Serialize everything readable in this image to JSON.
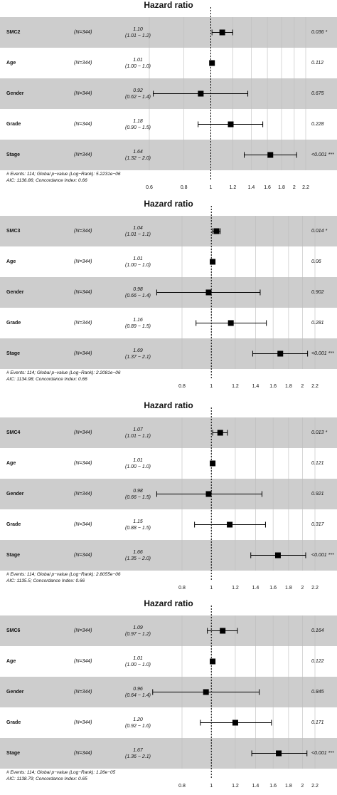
{
  "chart_data": [
    {
      "type": "forest",
      "title": "Hazard ratio",
      "xscale": "log",
      "xlim": [
        0.55,
        2.4
      ],
      "xticks": [
        "0.6",
        "0.8",
        "1",
        "1.2",
        "1.4",
        "1.6",
        "1.8",
        "2",
        "2.2"
      ],
      "rows": [
        {
          "variable": "SMC2",
          "n": "(N=344)",
          "hr": "1.10",
          "ci": "(1.01 − 1.2)",
          "pvalue": "0.036 *",
          "est": 1.1,
          "low": 1.01,
          "high": 1.2
        },
        {
          "variable": "Age",
          "n": "(N=344)",
          "hr": "1.01",
          "ci": "(1.00 − 1.0)",
          "pvalue": "0.112",
          "est": 1.01,
          "low": 1.0,
          "high": 1.02
        },
        {
          "variable": "Gender",
          "n": "(N=344)",
          "hr": "0.92",
          "ci": "(0.62 − 1.4)",
          "pvalue": "0.675",
          "est": 0.92,
          "low": 0.62,
          "high": 1.36
        },
        {
          "variable": "Grade",
          "n": "(N=344)",
          "hr": "1.18",
          "ci": "(0.90 − 1.5)",
          "pvalue": "0.228",
          "est": 1.18,
          "low": 0.9,
          "high": 1.54
        },
        {
          "variable": "Stage",
          "n": "(N=344)",
          "hr": "1.64",
          "ci": "(1.32 − 2.0)",
          "pvalue": "<0.001 ***",
          "est": 1.64,
          "low": 1.32,
          "high": 2.04
        }
      ],
      "footnote": [
        "# Events: 114; Global p−value (Log−Rank): 5.2231e−06",
        "AIC: 1136.86; Concordance Index: 0.66"
      ]
    },
    {
      "type": "forest",
      "title": "Hazard ratio",
      "xscale": "log",
      "xlim": [
        0.62,
        2.4
      ],
      "xticks": [
        "0.8",
        "1",
        "1.2",
        "1.4",
        "1.6",
        "1.8",
        "2",
        "2.2"
      ],
      "rows": [
        {
          "variable": "SMC3",
          "n": "(N=344)",
          "hr": "1.04",
          "ci": "(1.01 − 1.1)",
          "pvalue": "0.014 *",
          "est": 1.04,
          "low": 1.01,
          "high": 1.07
        },
        {
          "variable": "Age",
          "n": "(N=344)",
          "hr": "1.01",
          "ci": "(1.00 − 1.0)",
          "pvalue": "0.06",
          "est": 1.01,
          "low": 1.0,
          "high": 1.02
        },
        {
          "variable": "Gender",
          "n": "(N=344)",
          "hr": "0.98",
          "ci": "(0.66 − 1.4)",
          "pvalue": "0.902",
          "est": 0.98,
          "low": 0.66,
          "high": 1.45
        },
        {
          "variable": "Grade",
          "n": "(N=344)",
          "hr": "1.16",
          "ci": "(0.89 − 1.5)",
          "pvalue": "0.281",
          "est": 1.16,
          "low": 0.89,
          "high": 1.52
        },
        {
          "variable": "Stage",
          "n": "(N=344)",
          "hr": "1.69",
          "ci": "(1.37 − 2.1)",
          "pvalue": "<0.001 ***",
          "est": 1.69,
          "low": 1.37,
          "high": 2.08
        }
      ],
      "footnote": [
        "# Events: 114; Global p−value (Log−Rank): 2.2081e−06",
        "AIC: 1134.98; Concordance Index: 0.66"
      ]
    },
    {
      "type": "forest",
      "title": "Hazard ratio",
      "xscale": "log",
      "xlim": [
        0.62,
        2.4
      ],
      "xticks": [
        "0.8",
        "1",
        "1.2",
        "1.4",
        "1.6",
        "1.8",
        "2",
        "2.2"
      ],
      "rows": [
        {
          "variable": "SMC4",
          "n": "(N=344)",
          "hr": "1.07",
          "ci": "(1.01 − 1.1)",
          "pvalue": "0.013 *",
          "est": 1.07,
          "low": 1.01,
          "high": 1.13
        },
        {
          "variable": "Age",
          "n": "(N=344)",
          "hr": "1.01",
          "ci": "(1.00 − 1.0)",
          "pvalue": "0.121",
          "est": 1.01,
          "low": 1.0,
          "high": 1.02
        },
        {
          "variable": "Gender",
          "n": "(N=344)",
          "hr": "0.98",
          "ci": "(0.66 − 1.5)",
          "pvalue": "0.921",
          "est": 0.98,
          "low": 0.66,
          "high": 1.47
        },
        {
          "variable": "Grade",
          "n": "(N=344)",
          "hr": "1.15",
          "ci": "(0.88 − 1.5)",
          "pvalue": "0.317",
          "est": 1.15,
          "low": 0.88,
          "high": 1.51
        },
        {
          "variable": "Stage",
          "n": "(N=344)",
          "hr": "1.66",
          "ci": "(1.35 − 2.0)",
          "pvalue": "<0.001 ***",
          "est": 1.66,
          "low": 1.35,
          "high": 2.05
        }
      ],
      "footnote": [
        "# Events: 114; Global p−value (Log−Rank): 2.8055e−06",
        "AIC: 1135.5; Concordance Index: 0.66"
      ]
    },
    {
      "type": "forest",
      "title": "Hazard ratio",
      "xscale": "log",
      "xlim": [
        0.62,
        2.4
      ],
      "xticks": [
        "0.8",
        "1",
        "1.2",
        "1.4",
        "1.6",
        "1.8",
        "2",
        "2.2"
      ],
      "rows": [
        {
          "variable": "SMC6",
          "n": "(N=344)",
          "hr": "1.09",
          "ci": "(0.97 − 1.2)",
          "pvalue": "0.164",
          "est": 1.09,
          "low": 0.97,
          "high": 1.22
        },
        {
          "variable": "Age",
          "n": "(N=344)",
          "hr": "1.01",
          "ci": "(1.00 − 1.0)",
          "pvalue": "0.122",
          "est": 1.01,
          "low": 1.0,
          "high": 1.02
        },
        {
          "variable": "Gender",
          "n": "(N=344)",
          "hr": "0.96",
          "ci": "(0.64 − 1.4)",
          "pvalue": "0.845",
          "est": 0.96,
          "low": 0.64,
          "high": 1.44
        },
        {
          "variable": "Grade",
          "n": "(N=344)",
          "hr": "1.20",
          "ci": "(0.92 − 1.6)",
          "pvalue": "0.171",
          "est": 1.2,
          "low": 0.92,
          "high": 1.58
        },
        {
          "variable": "Stage",
          "n": "(N=344)",
          "hr": "1.67",
          "ci": "(1.36 − 2.1)",
          "pvalue": "<0.001 ***",
          "est": 1.67,
          "low": 1.36,
          "high": 2.07
        }
      ],
      "footnote": [
        "# Events: 114; Global p−value (Log−Rank): 1.26e−05",
        "AIC: 1138.79; Concordance Index: 0.65"
      ]
    }
  ],
  "colors": {
    "stripe": "#cdcdcd",
    "white": "#ffffff",
    "grid": "#bdbdbd",
    "mark": "#000000"
  }
}
